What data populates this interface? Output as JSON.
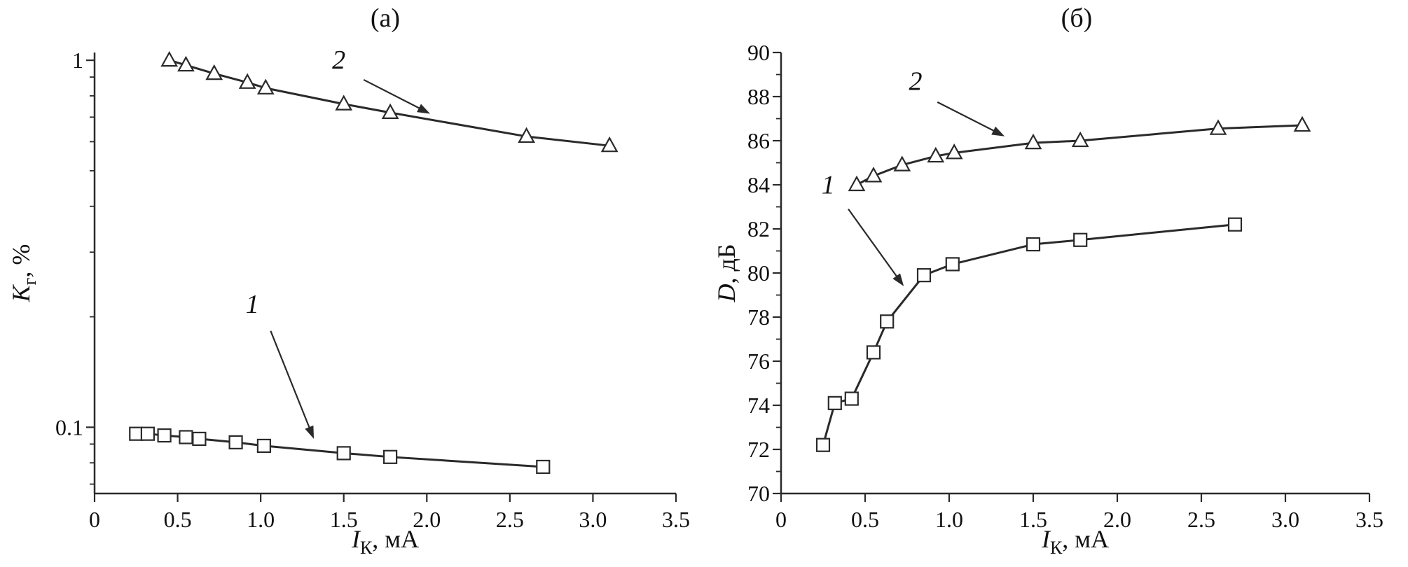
{
  "figure": {
    "background": "#ffffff",
    "line_color": "#2a2a2a",
    "text_color": "#111111",
    "marker_fill": "#ffffff"
  },
  "chart_data": [
    {
      "id": "a",
      "type": "line",
      "title": "(а)",
      "xlabel_parts": [
        {
          "t": "I",
          "s": "i"
        },
        {
          "t": "К",
          "s": "sub"
        },
        {
          "t": ", мА",
          "s": "n"
        }
      ],
      "ylabel_parts": [
        {
          "t": "K",
          "s": "i"
        },
        {
          "t": "г",
          "s": "sub"
        },
        {
          "t": ", %",
          "s": "n"
        }
      ],
      "xlim": [
        0,
        3.5
      ],
      "xticks": [
        0,
        0.5,
        1.0,
        1.5,
        2.0,
        2.5,
        3.0,
        3.5
      ],
      "xtick_labels": [
        "0",
        "0.5",
        "1.0",
        "1.5",
        "2.0",
        "2.5",
        "3.0",
        "3.5"
      ],
      "yscale": "log",
      "ylim": [
        0.066,
        1.05
      ],
      "yticks": [
        0.1,
        1
      ],
      "ytick_labels": [
        "0.1",
        "1"
      ],
      "yminor": [
        0.07,
        0.08,
        0.09,
        0.2,
        0.3,
        0.4,
        0.5,
        0.6,
        0.7,
        0.8,
        0.9
      ],
      "legend": "none",
      "grid": "off",
      "series": [
        {
          "name": "1",
          "marker": "square",
          "x": [
            0.25,
            0.32,
            0.42,
            0.55,
            0.63,
            0.85,
            1.02,
            1.5,
            1.78,
            2.7
          ],
          "y": [
            0.096,
            0.096,
            0.095,
            0.094,
            0.093,
            0.091,
            0.089,
            0.085,
            0.083,
            0.078
          ]
        },
        {
          "name": "2",
          "marker": "triangle",
          "x": [
            0.45,
            0.55,
            0.72,
            0.92,
            1.03,
            1.5,
            1.78,
            2.6,
            3.1
          ],
          "y": [
            1.0,
            0.97,
            0.92,
            0.87,
            0.84,
            0.76,
            0.72,
            0.62,
            0.585
          ]
        }
      ],
      "annotations": [
        {
          "label": "2",
          "text": [
            1.47,
            0.95
          ],
          "from": [
            1.62,
            0.885
          ],
          "to": [
            2.02,
            0.715
          ]
        },
        {
          "label": "1",
          "text": [
            0.95,
            0.205
          ],
          "from": [
            1.06,
            0.183
          ],
          "to": [
            1.32,
            0.093
          ]
        }
      ]
    },
    {
      "id": "b",
      "type": "line",
      "title": "(б)",
      "xlabel_parts": [
        {
          "t": "I",
          "s": "i"
        },
        {
          "t": "К",
          "s": "sub"
        },
        {
          "t": ", мА",
          "s": "n"
        }
      ],
      "ylabel_parts": [
        {
          "t": "D",
          "s": "i"
        },
        {
          "t": ", дБ",
          "s": "n"
        }
      ],
      "xlim": [
        0,
        3.5
      ],
      "xticks": [
        0,
        0.5,
        1.0,
        1.5,
        2.0,
        2.5,
        3.0,
        3.5
      ],
      "xtick_labels": [
        "0",
        "0.5",
        "1.0",
        "1.5",
        "2.0",
        "2.5",
        "3.0",
        "3.5"
      ],
      "yscale": "linear",
      "ylim": [
        70,
        90
      ],
      "yticks": [
        70,
        72,
        74,
        76,
        78,
        80,
        82,
        84,
        86,
        88,
        90
      ],
      "ytick_labels": [
        "70",
        "72",
        "74",
        "76",
        "78",
        "80",
        "82",
        "84",
        "86",
        "88",
        "90"
      ],
      "yminor": [
        71,
        73,
        75,
        77,
        79,
        81,
        83,
        85,
        87,
        89
      ],
      "legend": "none",
      "grid": "off",
      "series": [
        {
          "name": "1",
          "marker": "square",
          "x": [
            0.25,
            0.32,
            0.42,
            0.55,
            0.63,
            0.85,
            1.02,
            1.5,
            1.78,
            2.7
          ],
          "y": [
            72.2,
            74.1,
            74.3,
            76.4,
            77.8,
            79.9,
            80.4,
            81.3,
            81.5,
            82.2
          ]
        },
        {
          "name": "2",
          "marker": "triangle",
          "x": [
            0.45,
            0.55,
            0.72,
            0.92,
            1.03,
            1.5,
            1.78,
            2.6,
            3.1
          ],
          "y": [
            84.0,
            84.4,
            84.9,
            85.3,
            85.45,
            85.9,
            86.0,
            86.55,
            86.7
          ]
        }
      ],
      "annotations": [
        {
          "label": "2",
          "text": [
            0.8,
            88.3
          ],
          "from": [
            0.93,
            87.75
          ],
          "to": [
            1.33,
            86.2
          ]
        },
        {
          "label": "1",
          "text": [
            0.28,
            83.6
          ],
          "from": [
            0.4,
            82.9
          ],
          "to": [
            0.73,
            79.4
          ]
        }
      ]
    }
  ]
}
